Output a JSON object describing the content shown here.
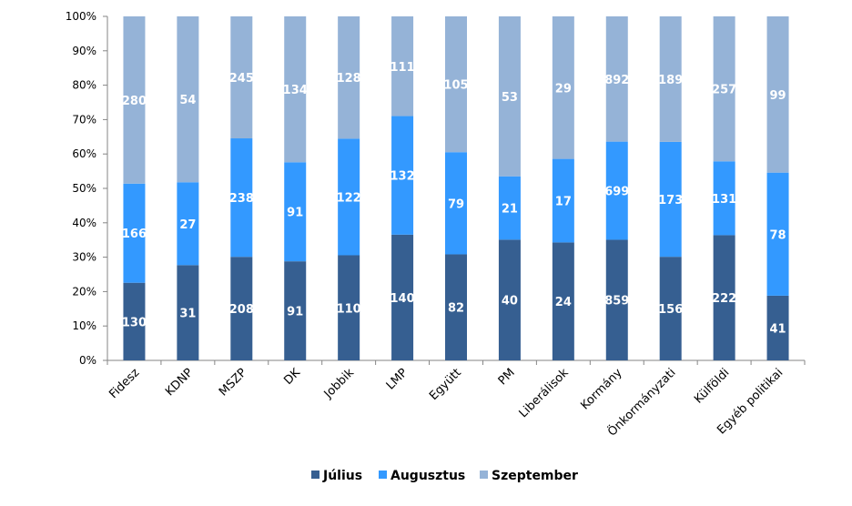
{
  "chart_data": {
    "type": "bar",
    "stacked": "percent",
    "categories": [
      "Fidesz",
      "KDNP",
      "MSZP",
      "DK",
      "Jobbik",
      "LMP",
      "Együtt",
      "PM",
      "Liberálisok",
      "Kormány",
      "Önkormányzati",
      "Külföldi",
      "Egyéb politikai"
    ],
    "series": [
      {
        "name": "Július",
        "color": "#365f91",
        "values": [
          130,
          31,
          208,
          91,
          110,
          140,
          82,
          40,
          24,
          859,
          156,
          222,
          41
        ]
      },
      {
        "name": "Augusztus",
        "color": "#3399ff",
        "values": [
          166,
          27,
          238,
          91,
          122,
          132,
          79,
          21,
          17,
          699,
          173,
          131,
          78
        ]
      },
      {
        "name": "Szeptember",
        "color": "#95b3d7",
        "values": [
          280,
          54,
          245,
          134,
          128,
          111,
          105,
          53,
          29,
          892,
          189,
          257,
          99
        ]
      }
    ],
    "y_ticks": [
      "0%",
      "10%",
      "20%",
      "30%",
      "40%",
      "50%",
      "60%",
      "70%",
      "80%",
      "90%",
      "100%"
    ],
    "ylim": [
      0,
      100
    ],
    "grid": false,
    "legend_position": "bottom"
  }
}
